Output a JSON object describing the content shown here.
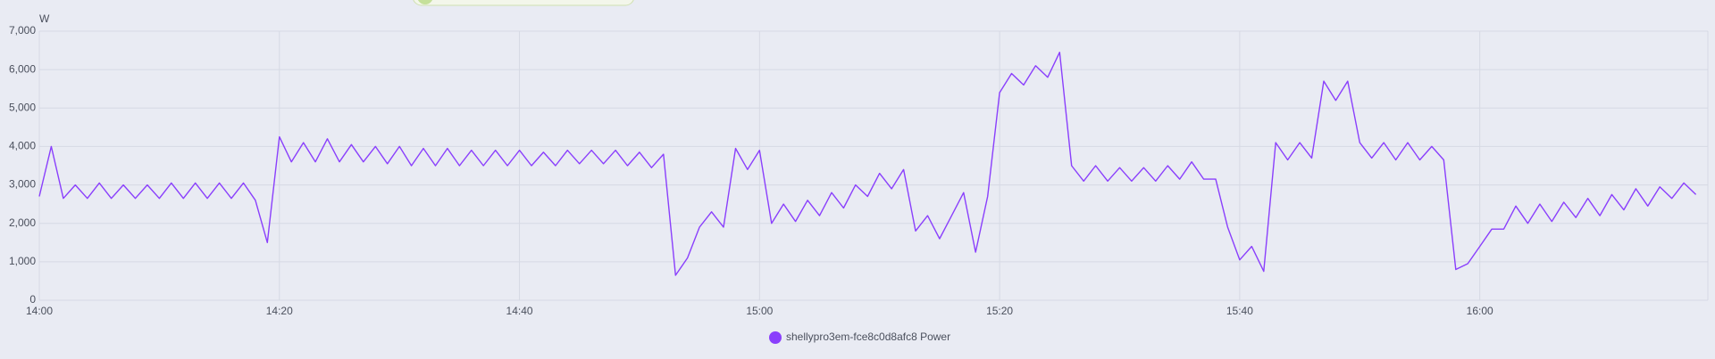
{
  "chart_data": {
    "type": "line",
    "y_label": "W",
    "x": [
      0,
      1,
      2,
      3,
      4,
      5,
      6,
      7,
      8,
      9,
      10,
      11,
      12,
      13,
      14,
      15,
      16,
      17,
      18,
      19,
      20,
      21,
      22,
      23,
      24,
      25,
      26,
      27,
      28,
      29,
      30,
      31,
      32,
      33,
      34,
      35,
      36,
      37,
      38,
      39,
      40,
      41,
      42,
      43,
      44,
      45,
      46,
      47,
      48,
      49,
      50,
      51,
      52,
      53,
      54,
      55,
      56,
      57,
      58,
      59,
      60,
      61,
      62,
      63,
      64,
      65,
      66,
      67,
      68,
      69,
      70,
      71,
      72,
      73,
      74,
      75,
      76,
      77,
      78,
      79,
      80,
      81,
      82,
      83,
      84,
      85,
      86,
      87,
      88,
      89,
      90,
      91,
      92,
      93,
      94,
      95,
      96,
      97,
      98,
      99,
      100,
      101,
      102,
      103,
      104,
      105,
      106,
      107,
      108,
      109,
      110,
      111,
      112,
      113,
      114,
      115,
      116,
      117,
      118,
      119,
      120,
      121,
      122,
      123,
      124,
      125,
      126,
      127,
      128,
      129,
      130,
      131,
      132,
      133,
      134,
      135,
      136,
      137,
      138
    ],
    "series": [
      {
        "name": "shellypro3em-fce8c0d8afc8 Power",
        "color": "#8a3ffc",
        "values": [
          2700,
          4000,
          2650,
          3000,
          2650,
          3050,
          2650,
          3000,
          2650,
          3000,
          2650,
          3050,
          2650,
          3050,
          2650,
          3050,
          2650,
          3050,
          2600,
          1500,
          4250,
          3600,
          4100,
          3600,
          4200,
          3600,
          4050,
          3600,
          4000,
          3550,
          4000,
          3500,
          3950,
          3500,
          3950,
          3500,
          3900,
          3500,
          3900,
          3500,
          3900,
          3500,
          3850,
          3500,
          3900,
          3550,
          3900,
          3550,
          3900,
          3500,
          3850,
          3450,
          3800,
          650,
          1100,
          1900,
          2300,
          1900,
          3950,
          3400,
          3900,
          2000,
          2500,
          2050,
          2600,
          2200,
          2800,
          2400,
          3000,
          2700,
          3300,
          2900,
          3400,
          1800,
          2200,
          1600,
          2200,
          2800,
          1250,
          2700,
          5400,
          5900,
          5600,
          6100,
          5800,
          6450,
          3500,
          3100,
          3500,
          3100,
          3450,
          3100,
          3450,
          3100,
          3500,
          3150,
          3600,
          3150,
          3150,
          1900,
          1050,
          1400,
          750,
          4100,
          3650,
          4100,
          3700,
          5700,
          5200,
          5700,
          4100,
          3700,
          4100,
          3650,
          4100,
          3650,
          4000,
          3650,
          800,
          950,
          1400,
          1850,
          1850,
          2450,
          2000,
          2500,
          2050,
          2550,
          2150,
          2650,
          2200,
          2750,
          2350,
          2900,
          2450,
          2950,
          2650,
          3050,
          2750
        ]
      }
    ],
    "xlim": [
      0,
      139
    ],
    "xticks": [
      {
        "value": 0,
        "label": "14:00"
      },
      {
        "value": 20,
        "label": "14:20"
      },
      {
        "value": 40,
        "label": "14:40"
      },
      {
        "value": 60,
        "label": "15:00"
      },
      {
        "value": 80,
        "label": "15:20"
      },
      {
        "value": 100,
        "label": "15:40"
      },
      {
        "value": 120,
        "label": "16:00"
      }
    ],
    "ylim": [
      0,
      7000
    ],
    "yticks": [
      0,
      {
        "value": 1000,
        "label": "1,000"
      },
      {
        "value": 2000,
        "label": "2,000"
      },
      {
        "value": 3000,
        "label": "3,000"
      },
      {
        "value": 4000,
        "label": "4,000"
      },
      {
        "value": 5000,
        "label": "5,000"
      },
      {
        "value": 6000,
        "label": "6,000"
      },
      {
        "value": 7000,
        "label": "7,000"
      }
    ],
    "grid": true
  }
}
